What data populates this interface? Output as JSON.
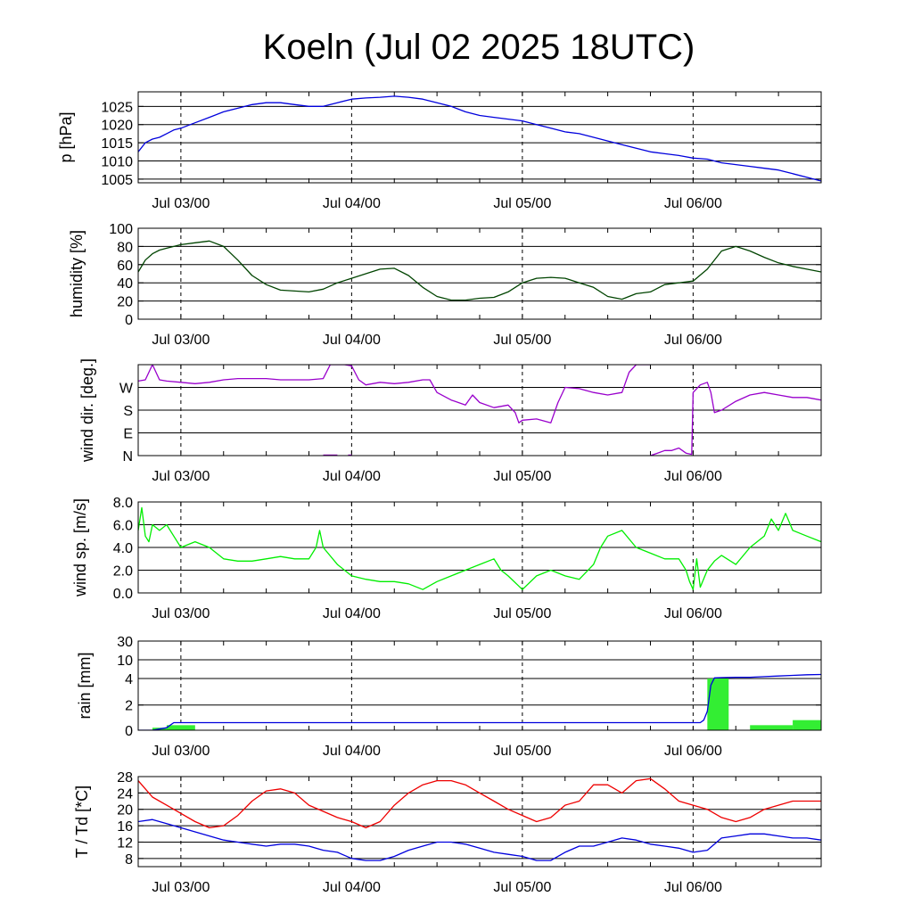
{
  "chart_data": {
    "title": "Koeln (Jul 02 2025 18UTC)",
    "type": "line",
    "x_range": [
      "Jul 02 18:00",
      "Jul 06 22:00"
    ],
    "x_ticks": [
      "Jul 03/00",
      "Jul 04/00",
      "Jul 05/00",
      "Jul 06/00"
    ],
    "x_ticks_hours": [
      6,
      30,
      54,
      78
    ],
    "x_start_hour": 0,
    "x_end_hour": 96,
    "grid": true,
    "panels": [
      {
        "id": "pressure",
        "ylabel": "p [hPa]",
        "ylim": [
          1004,
          1029
        ],
        "yticks": [
          1005,
          1010,
          1015,
          1020,
          1025
        ],
        "ytick_labels": [
          "1005",
          "1010",
          "1015",
          "1020",
          "1025"
        ],
        "series": [
          {
            "type": "line",
            "color": "#0000dd",
            "x": [
              0,
              1,
              2,
              3,
              4,
              5,
              6,
              8,
              10,
              12,
              14,
              16,
              18,
              20,
              22,
              24,
              26,
              28,
              30,
              32,
              34,
              36,
              38,
              40,
              42,
              44,
              46,
              48,
              50,
              52,
              54,
              56,
              58,
              60,
              62,
              64,
              66,
              68,
              70,
              72,
              74,
              76,
              78,
              80,
              82,
              84,
              86,
              88,
              90,
              92,
              94,
              96
            ],
            "y": [
              1012.5,
              1015,
              1016,
              1016.5,
              1017.5,
              1018.5,
              1019,
              1020.5,
              1022,
              1023.5,
              1024.5,
              1025.5,
              1026,
              1026,
              1025.5,
              1025,
              1025,
              1026,
              1027,
              1027.3,
              1027.5,
              1027.8,
              1027.5,
              1027,
              1026,
              1025,
              1023.5,
              1022.5,
              1022,
              1021.5,
              1021,
              1020,
              1019,
              1018,
              1017.5,
              1016.5,
              1015.5,
              1014.5,
              1013.5,
              1012.5,
              1012,
              1011.5,
              1010.8,
              1010.5,
              1009.5,
              1009,
              1008.5,
              1008,
              1007.5,
              1006.5,
              1005.5,
              1004.5
            ]
          }
        ]
      },
      {
        "id": "humidity",
        "ylabel": "humidity [%]",
        "ylim": [
          0,
          100
        ],
        "yticks": [
          0,
          20,
          40,
          60,
          80,
          100
        ],
        "ytick_labels": [
          "0",
          "20",
          "40",
          "60",
          "80",
          "100"
        ],
        "series": [
          {
            "type": "line",
            "color": "#004400",
            "x": [
              0,
              1,
              2,
              3,
              4,
              5,
              6,
              8,
              10,
              12,
              14,
              16,
              18,
              20,
              22,
              24,
              26,
              28,
              30,
              32,
              34,
              36,
              38,
              40,
              42,
              44,
              46,
              48,
              50,
              52,
              54,
              56,
              58,
              60,
              62,
              64,
              66,
              68,
              70,
              72,
              74,
              76,
              78,
              80,
              82,
              84,
              86,
              88,
              90,
              92,
              94,
              96
            ],
            "y": [
              52,
              65,
              72,
              76,
              78,
              80,
              82,
              84,
              86,
              80,
              65,
              48,
              38,
              32,
              31,
              30,
              33,
              40,
              45,
              50,
              55,
              56,
              48,
              35,
              25,
              21,
              21,
              23,
              24,
              30,
              40,
              45,
              46,
              45,
              40,
              35,
              25,
              22,
              28,
              30,
              38,
              40,
              42,
              55,
              75,
              80,
              75,
              68,
              62,
              58,
              55,
              52
            ]
          }
        ]
      },
      {
        "id": "wind_direction",
        "ylabel": "wind dir. [deg.]",
        "ylim": [
          0,
          360
        ],
        "yticks": [
          0,
          90,
          180,
          270
        ],
        "ytick_labels": [
          "N",
          "E",
          "S",
          "W"
        ],
        "series": [
          {
            "type": "line",
            "color": "#9900cc",
            "x": [
              0,
              1,
              2,
              3,
              4,
              6,
              8,
              10,
              12,
              14,
              16,
              18,
              20,
              22,
              24,
              26,
              27,
              28,
              29,
              30,
              31,
              32,
              34,
              36,
              38,
              40,
              41,
              42,
              44,
              46,
              47,
              48,
              50,
              52,
              53,
              53.5,
              54,
              56,
              58,
              59,
              60,
              62,
              64,
              66,
              68,
              69,
              70,
              71,
              72
            ],
            "y": [
              295,
              300,
              360,
              300,
              295,
              290,
              285,
              290,
              300,
              305,
              305,
              305,
              300,
              300,
              300,
              305,
              360,
              360,
              360,
              355,
              300,
              280,
              290,
              285,
              290,
              300,
              300,
              250,
              220,
              200,
              240,
              210,
              190,
              200,
              170,
              130,
              140,
              145,
              130,
              210,
              270,
              265,
              250,
              240,
              250,
              330,
              360,
              360,
              360
            ]
          },
          {
            "type": "line",
            "color": "#9900cc",
            "x": [
              72,
              73,
              74,
              75,
              76,
              77,
              77.8,
              78,
              79,
              80,
              80.5,
              81,
              82,
              84,
              86,
              88,
              90,
              92,
              94,
              96
            ],
            "y": [
              0,
              10,
              20,
              20,
              30,
              10,
              5,
              250,
              280,
              290,
              250,
              170,
              180,
              215,
              240,
              250,
              240,
              230,
              230,
              220
            ]
          },
          {
            "type": "line",
            "color": "#9900cc",
            "x": [
              26,
              28
            ],
            "y": [
              2,
              2
            ]
          },
          {
            "type": "line",
            "color": "#9900cc",
            "x": [
              29.5,
              30
            ],
            "y": [
              2,
              2
            ]
          }
        ]
      },
      {
        "id": "wind_speed",
        "ylabel": "wind sp. [m/s]",
        "ylim": [
          0,
          8
        ],
        "yticks": [
          0,
          2,
          4,
          6,
          8
        ],
        "ytick_labels": [
          "0.0",
          "2.0",
          "4.0",
          "6.0",
          "8.0"
        ],
        "series": [
          {
            "type": "line",
            "color": "#00ee00",
            "x": [
              0,
              0.5,
              1,
              1.5,
              2,
              3,
              4,
              5,
              6,
              8,
              10,
              12,
              14,
              16,
              18,
              20,
              22,
              24,
              25,
              25.5,
              26,
              28,
              30,
              32,
              34,
              36,
              38,
              40,
              42,
              44,
              46,
              48,
              50,
              51,
              52,
              54,
              56,
              58,
              60,
              62,
              64,
              65,
              66,
              68,
              70,
              72,
              74,
              76,
              77,
              77.5,
              78,
              78.5,
              79,
              80,
              81,
              82,
              84,
              86,
              88,
              89,
              90,
              91,
              92,
              94,
              96
            ],
            "y": [
              5.5,
              7.5,
              5,
              4.5,
              6,
              5.5,
              6,
              5,
              4,
              4.5,
              4,
              3,
              2.8,
              2.8,
              3,
              3.2,
              3,
              3,
              4,
              5.5,
              4,
              2.5,
              1.5,
              1.2,
              1,
              1,
              0.8,
              0.3,
              1,
              1.5,
              2,
              2.5,
              3,
              2,
              1.5,
              0.3,
              1.5,
              2,
              1.5,
              1.2,
              2.5,
              4,
              5,
              5.5,
              4,
              3.5,
              3,
              3,
              2,
              1,
              0.3,
              3,
              0.5,
              2,
              2.8,
              3.3,
              2.5,
              4,
              5,
              6.5,
              5.5,
              7,
              5.5,
              5,
              4.5
            ]
          }
        ]
      },
      {
        "id": "rain",
        "ylabel": "rain [mm]",
        "ylim": [
          0,
          30
        ],
        "scale": "piecewise",
        "yticks": [
          0,
          2,
          4,
          10,
          30
        ],
        "ytick_labels": [
          "0",
          "2",
          "4",
          "10",
          "30"
        ],
        "series": [
          {
            "type": "bar",
            "color": "#33ee33",
            "bars": [
              {
                "x0": 2,
                "x1": 4,
                "value": 0.2
              },
              {
                "x0": 4,
                "x1": 8,
                "value": 0.4
              },
              {
                "x0": 80,
                "x1": 83,
                "value": 4
              },
              {
                "x0": 86,
                "x1": 92,
                "value": 0.4
              },
              {
                "x0": 92,
                "x1": 96,
                "value": 0.8
              }
            ]
          },
          {
            "type": "line",
            "color": "#0000dd",
            "x": [
              0,
              2,
              4,
              5,
              6,
              78,
              79,
              79.5,
              80,
              80.5,
              81,
              82,
              84,
              86,
              88,
              90,
              92,
              94,
              96
            ],
            "y": [
              0,
              0,
              0.2,
              0.6,
              0.6,
              0.6,
              0.6,
              0.8,
              1.5,
              3.5,
              4.2,
              4.3,
              4.4,
              4.4,
              4.6,
              4.8,
              5.0,
              5.2,
              5.3
            ]
          }
        ]
      },
      {
        "id": "temperature",
        "ylabel": "T / Td [*C]",
        "ylim": [
          6,
          28
        ],
        "yticks": [
          8,
          12,
          16,
          20,
          24,
          28
        ],
        "ytick_labels": [
          "8",
          "12",
          "16",
          "20",
          "24",
          "28"
        ],
        "series": [
          {
            "type": "line",
            "color": "#ee0000",
            "x": [
              0,
              2,
              4,
              6,
              8,
              10,
              12,
              14,
              16,
              18,
              20,
              22,
              24,
              26,
              28,
              30,
              32,
              34,
              36,
              38,
              40,
              42,
              44,
              46,
              48,
              50,
              52,
              54,
              56,
              58,
              60,
              62,
              64,
              66,
              68,
              70,
              72,
              74,
              76,
              78,
              80,
              82,
              84,
              86,
              88,
              90,
              92,
              94,
              96
            ],
            "y": [
              27,
              23,
              21,
              19,
              17,
              15.5,
              16,
              18.5,
              22,
              24.5,
              25,
              24,
              21,
              19.5,
              18,
              17,
              15.5,
              17,
              21,
              24,
              26,
              27,
              27,
              26,
              24,
              22,
              20,
              18.5,
              17,
              18,
              21,
              22,
              26,
              26,
              24,
              27,
              27.5,
              25,
              22,
              21,
              20,
              18,
              17,
              18,
              20,
              21,
              22,
              22,
              22
            ]
          },
          {
            "type": "line",
            "color": "#0000dd",
            "x": [
              0,
              2,
              4,
              6,
              8,
              10,
              12,
              14,
              16,
              18,
              20,
              22,
              24,
              26,
              28,
              30,
              32,
              34,
              36,
              38,
              40,
              42,
              44,
              46,
              48,
              50,
              52,
              54,
              56,
              58,
              60,
              62,
              64,
              66,
              68,
              70,
              72,
              74,
              76,
              78,
              80,
              82,
              84,
              86,
              88,
              90,
              92,
              94,
              96
            ],
            "y": [
              17,
              17.5,
              16.5,
              15.5,
              14.5,
              13.5,
              12.5,
              12,
              11.5,
              11,
              11.5,
              11.5,
              11,
              10,
              9.5,
              8,
              7.5,
              7.5,
              8.5,
              10,
              11,
              12,
              12,
              11.5,
              10.5,
              9.5,
              9,
              8.5,
              7.5,
              7.5,
              9.5,
              11,
              11,
              12,
              13,
              12.5,
              11.5,
              11,
              10.5,
              9.5,
              10,
              13,
              13.5,
              14,
              14,
              13.5,
              13,
              13,
              12.5
            ]
          }
        ]
      }
    ]
  }
}
